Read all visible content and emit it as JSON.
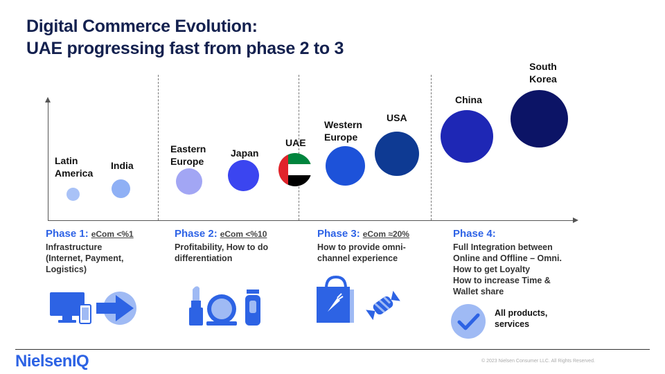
{
  "title": {
    "line1": "Digital Commerce Evolution:",
    "line2": "UAE progressing fast from phase 2 to 3"
  },
  "countries": [
    {
      "id": "latin-america",
      "label": "Latin\nAmerica",
      "color": "#a9c2f7"
    },
    {
      "id": "india",
      "label": "India",
      "color": "#8fb0f5"
    },
    {
      "id": "eastern-europe",
      "label": "Eastern\nEurope",
      "color": "#a2a6f4"
    },
    {
      "id": "japan",
      "label": "Japan",
      "color": "#3b45f0"
    },
    {
      "id": "uae",
      "label": "UAE",
      "color": "flag"
    },
    {
      "id": "western-europe",
      "label": "Western\nEurope",
      "color": "#1d52d9"
    },
    {
      "id": "usa",
      "label": "USA",
      "color": "#0e3a93"
    },
    {
      "id": "china",
      "label": "China",
      "color": "#1e27b5"
    },
    {
      "id": "south-korea",
      "label": "South\nKorea",
      "color": "#0c1466"
    }
  ],
  "phases": [
    {
      "head": "Phase 1:",
      "sub": "eCom <%1",
      "desc": "Infrastructure\n(Internet, Payment,\nLogistics)"
    },
    {
      "head": "Phase 2:",
      "sub": "eCom <%10",
      "desc": "Profitability, How to do\ndifferentiation"
    },
    {
      "head": "Phase 3:",
      "sub": "eCom ≈20%",
      "desc": "How to provide omni-\nchannel experience"
    },
    {
      "head": "Phase 4:",
      "sub": "",
      "desc": "Full Integration between\nOnline and Offline – Omni.\nHow to get Loyalty\nHow to increase Time &\nWallet share"
    }
  ],
  "note": "All products,\nservices",
  "footer": {
    "logo": "NielsenIQ",
    "copyright": "© 2023 Nielsen Consumer LLC. All Rights Reserved."
  },
  "colors": {
    "title": "#14214f",
    "phase_accent": "#2e63e6",
    "icon_blue": "#2d63e4",
    "icon_light": "#9fbaf4"
  }
}
